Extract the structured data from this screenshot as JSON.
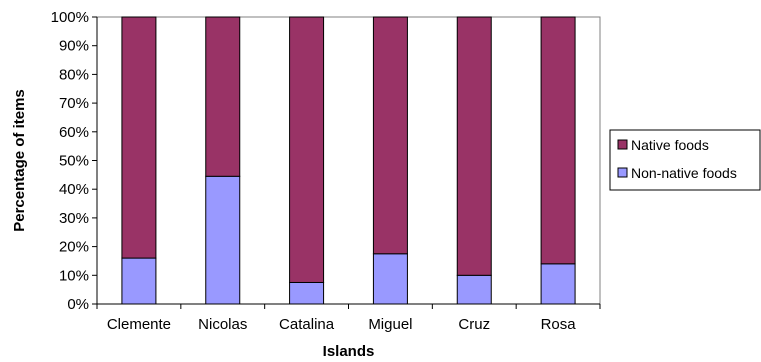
{
  "chart_data": {
    "type": "bar",
    "stacked": "percent",
    "categories": [
      "Clemente",
      "Nicolas",
      "Catalina",
      "Miguel",
      "Cruz",
      "Rosa"
    ],
    "series": [
      {
        "name": "Non-native foods",
        "values": [
          16,
          44.5,
          7.5,
          17.5,
          10,
          14
        ],
        "color": "#9999ff"
      },
      {
        "name": "Native foods",
        "values": [
          84,
          55.5,
          92.5,
          82.5,
          90,
          86
        ],
        "color": "#993366"
      }
    ],
    "xlabel": "Islands",
    "ylabel": "Percentage of items",
    "ylim": [
      0,
      100
    ],
    "yticks": [
      "0%",
      "10%",
      "20%",
      "30%",
      "40%",
      "50%",
      "60%",
      "70%",
      "80%",
      "90%",
      "100%"
    ],
    "grid": false,
    "legend_position": "right",
    "legend_order": [
      "Native foods",
      "Non-native foods"
    ]
  }
}
